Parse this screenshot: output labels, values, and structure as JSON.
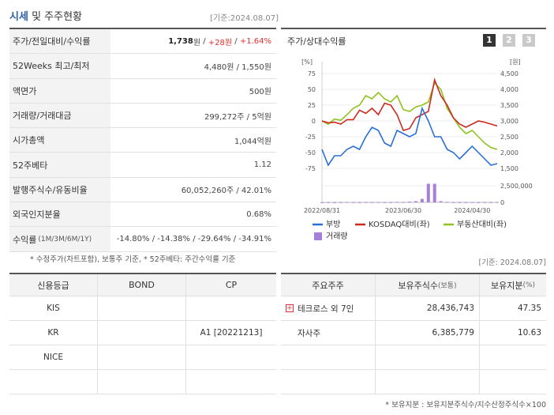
{
  "header": {
    "title_main": "시세",
    "title_rest": "및 주주현황",
    "date": "[기준:2024.08.07]"
  },
  "summary": {
    "rows": [
      {
        "label": "주가/전일대비/수익률"
      },
      {
        "label": "52Weeks 최고/최저",
        "value": "4,480원 / 1,550원"
      },
      {
        "label": "액면가",
        "value": "500원"
      },
      {
        "label": "거래량/거래대금",
        "value": "299,272주 / 5억원"
      },
      {
        "label": "시가총액",
        "value": "1,044억원"
      },
      {
        "label": "52주베타",
        "value": "1.12"
      },
      {
        "label": "발행주식수/유동비율",
        "value": "60,052,260주 / 42.01%"
      },
      {
        "label": "외국인지분율",
        "value": "0.68%"
      },
      {
        "label": "수익률",
        "label_small": "(1M/3M/6M/1Y)"
      }
    ],
    "price": "1,738",
    "price_unit": "원",
    "change": "+28원",
    "change_pct": "+1.64%",
    "returns": [
      "-14.80%",
      "-14.38%",
      "-29.64%",
      "-34.91%"
    ],
    "note": "* 수정주가(차트포함), 보통주 기준, * 52주베타: 주간수익률 기준"
  },
  "chart": {
    "title": "주가/상대수익률",
    "buttons": [
      "1",
      "2",
      "3"
    ],
    "left_unit": "[%]",
    "right_unit": "[원]",
    "left_ticks": [
      "75",
      "50",
      "25",
      "0",
      "-25",
      "-50",
      "-75"
    ],
    "right_ticks": [
      "4,500",
      "4,000",
      "3,500",
      "3,000",
      "2,500",
      "2,000",
      "1,500"
    ],
    "vol_tick": "2,500,000",
    "vol_zero": "0",
    "x_ticks": [
      "2022/08/31",
      "2023/06/30",
      "2024/04/30"
    ],
    "legend": [
      "부방",
      "KOSDAQ대비(좌)",
      "부동산대비(좌)",
      "거래량"
    ],
    "colors": {
      "stock": "#2a6fd6",
      "kosdaq": "#cc2a1f",
      "realestate": "#8fc21f",
      "volume": "#a57fd8"
    }
  },
  "chart_data": {
    "type": "line",
    "x_labels": [
      "2022/08/31",
      "2023/06/30",
      "2024/04/30"
    ],
    "series": [
      {
        "name": "부방",
        "values": [
          2.1,
          1.6,
          1.9,
          1.9,
          2.1,
          2.2,
          2.1,
          2.5,
          2.8,
          2.7,
          2.3,
          2.2,
          2.7,
          2.6,
          2.5,
          2.6,
          3.4,
          3.0,
          2.5,
          2.5,
          2.1,
          2.0,
          1.8,
          2.0,
          2.2,
          2.0,
          1.8,
          1.6,
          1.65
        ]
      },
      {
        "name": "KOSDAQ대비(좌)",
        "values": [
          0,
          -3,
          -2,
          -5,
          2,
          2,
          17,
          12,
          20,
          10,
          28,
          25,
          10,
          -15,
          -12,
          5,
          10,
          15,
          65,
          40,
          25,
          5,
          -5,
          -10,
          -5,
          0,
          -2,
          -5,
          -8
        ]
      },
      {
        "name": "부동산대비(좌)",
        "values": [
          0,
          -5,
          3,
          1,
          10,
          20,
          25,
          40,
          35,
          45,
          35,
          30,
          40,
          18,
          15,
          22,
          25,
          30,
          60,
          50,
          20,
          5,
          -10,
          -20,
          -15,
          -25,
          -35,
          -42,
          -45
        ]
      },
      {
        "name": "거래량",
        "values": [
          0.05,
          0.1,
          0.08,
          0.1,
          0.15,
          0.1,
          0.08,
          0.12,
          0.1,
          0.15,
          0.1,
          0.12,
          0.2,
          0.15,
          0.3,
          0.5,
          1.5,
          8.0,
          8.0,
          0.5,
          0.2,
          0.1,
          0.08,
          0.1,
          0.12,
          0.08,
          0.1,
          0.1,
          0.12
        ]
      }
    ],
    "ylim_left": [
      -75,
      75
    ],
    "ylim_right": [
      1500,
      4500
    ],
    "legend_position": "bottom"
  },
  "credit": {
    "headers": [
      "신용등급",
      "BOND",
      "CP"
    ],
    "rows": [
      {
        "agency": "KIS",
        "bond": "",
        "cp": ""
      },
      {
        "agency": "KR",
        "bond": "",
        "cp": "A1 [20221213]"
      },
      {
        "agency": "NICE",
        "bond": "",
        "cp": ""
      },
      {
        "agency": "",
        "bond": "",
        "cp": ""
      }
    ]
  },
  "holders": {
    "date": "[기준: 2024.08.07]",
    "headers": [
      "주요주주",
      "보유주식수",
      "(보통)",
      "보유지분",
      "(%)"
    ],
    "rows": [
      {
        "name": "테크로스 외 7인",
        "shares": "28,436,743",
        "pct": "47.35",
        "expandable": true
      },
      {
        "name": "자사주",
        "shares": "6,385,779",
        "pct": "10.63",
        "expandable": false
      },
      {
        "name": "",
        "shares": "",
        "pct": "",
        "expandable": false
      },
      {
        "name": "",
        "shares": "",
        "pct": "",
        "expandable": false
      }
    ],
    "note": "* 보유지분 : 보유지분주식수/지수산정주식수×100"
  }
}
